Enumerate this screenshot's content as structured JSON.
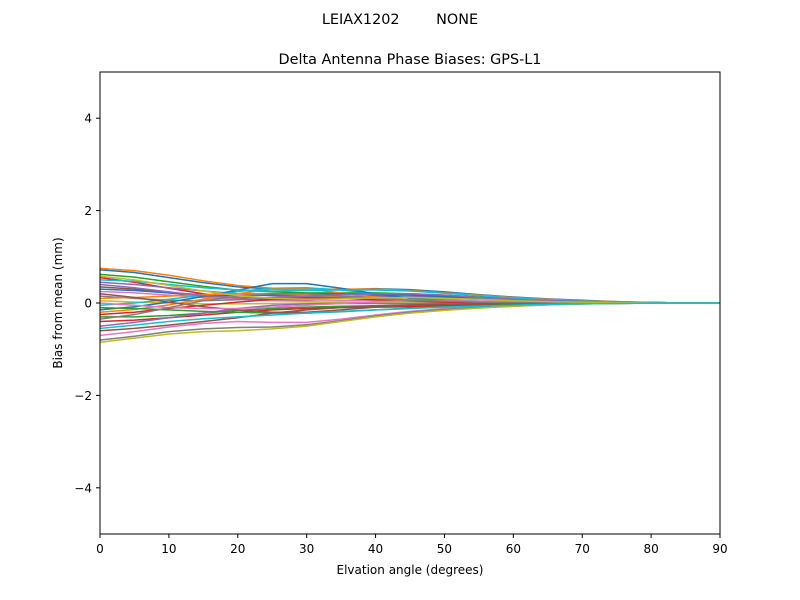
{
  "suptitle": "LEIAX1202        NONE",
  "chart_data": {
    "type": "line",
    "title": "Delta Antenna Phase Biases: GPS-L1",
    "xlabel": "Elvation angle (degrees)",
    "ylabel": "Bias from mean (mm)",
    "xlim": [
      0,
      90
    ],
    "ylim": [
      -5,
      5
    ],
    "xticks": [
      0,
      10,
      20,
      30,
      40,
      50,
      60,
      70,
      80,
      90
    ],
    "yticks": [
      -4,
      -2,
      0,
      2,
      4
    ],
    "ytick_labels": [
      "−4",
      "−2",
      "0",
      "2",
      "4"
    ],
    "grid": false,
    "legend": "none",
    "colors": [
      "#1f77b4",
      "#ff7f0e",
      "#2ca02c",
      "#d62728",
      "#9467bd",
      "#8c564b",
      "#e377c2",
      "#7f7f7f",
      "#bcbd22",
      "#17becf"
    ],
    "x": [
      0,
      5,
      10,
      15,
      20,
      25,
      30,
      35,
      40,
      45,
      50,
      55,
      60,
      65,
      70,
      75,
      80,
      85,
      90
    ],
    "series": [
      {
        "values": [
          0.72,
          0.66,
          0.55,
          0.44,
          0.35,
          0.3,
          0.28,
          0.29,
          0.31,
          0.29,
          0.24,
          0.18,
          0.13,
          0.09,
          0.06,
          0.03,
          0.01,
          0.0,
          0.0
        ]
      },
      {
        "values": [
          0.75,
          0.7,
          0.6,
          0.48,
          0.38,
          0.32,
          0.3,
          0.3,
          0.3,
          0.27,
          0.22,
          0.17,
          0.12,
          0.08,
          0.05,
          0.03,
          0.01,
          0.0,
          0.0
        ]
      },
      {
        "values": [
          0.62,
          0.56,
          0.46,
          0.36,
          0.28,
          0.24,
          0.22,
          0.22,
          0.22,
          0.2,
          0.17,
          0.13,
          0.09,
          0.06,
          0.04,
          0.02,
          0.01,
          0.0,
          0.0
        ]
      },
      {
        "values": [
          0.55,
          0.45,
          0.32,
          0.2,
          0.1,
          0.06,
          0.07,
          0.12,
          0.17,
          0.18,
          0.15,
          0.11,
          0.08,
          0.05,
          0.03,
          0.02,
          0.01,
          0.0,
          0.0
        ]
      },
      {
        "values": [
          0.45,
          0.4,
          0.33,
          0.26,
          0.2,
          0.16,
          0.15,
          0.15,
          0.15,
          0.14,
          0.12,
          0.09,
          0.07,
          0.05,
          0.03,
          0.02,
          0.01,
          0.0,
          0.0
        ]
      },
      {
        "values": [
          0.35,
          0.3,
          0.22,
          0.14,
          0.08,
          0.06,
          0.07,
          0.1,
          0.12,
          0.12,
          0.1,
          0.08,
          0.06,
          0.04,
          0.02,
          0.01,
          0.0,
          0.0,
          0.0
        ]
      },
      {
        "values": [
          0.25,
          0.22,
          0.17,
          0.12,
          0.08,
          0.05,
          0.04,
          0.05,
          0.06,
          0.06,
          0.05,
          0.04,
          0.03,
          0.02,
          0.01,
          0.01,
          0.0,
          0.0,
          0.0
        ]
      },
      {
        "values": [
          0.15,
          0.1,
          0.06,
          0.05,
          0.07,
          0.11,
          0.13,
          0.12,
          0.09,
          0.06,
          0.04,
          0.03,
          0.02,
          0.01,
          0.01,
          0.0,
          0.0,
          0.0,
          0.0
        ]
      },
      {
        "values": [
          0.05,
          0.02,
          0.0,
          -0.02,
          -0.02,
          -0.01,
          0.0,
          0.01,
          0.02,
          0.02,
          0.02,
          0.01,
          0.01,
          0.0,
          0.0,
          0.0,
          0.0,
          0.0,
          0.0
        ]
      },
      {
        "values": [
          -0.05,
          0.0,
          0.08,
          0.17,
          0.25,
          0.32,
          0.33,
          0.28,
          0.2,
          0.12,
          0.07,
          0.04,
          0.02,
          0.01,
          0.01,
          0.0,
          0.0,
          0.0,
          0.0
        ]
      },
      {
        "values": [
          -0.15,
          -0.08,
          0.02,
          0.14,
          0.28,
          0.42,
          0.42,
          0.32,
          0.2,
          0.1,
          0.05,
          0.03,
          0.02,
          0.01,
          0.0,
          0.0,
          0.0,
          0.0,
          0.0
        ]
      },
      {
        "values": [
          -0.2,
          -0.14,
          -0.04,
          0.08,
          0.2,
          0.3,
          0.3,
          0.22,
          0.13,
          0.06,
          0.03,
          0.02,
          0.01,
          0.0,
          0.0,
          0.0,
          0.0,
          0.0,
          0.0
        ]
      },
      {
        "values": [
          -0.3,
          -0.3,
          -0.27,
          -0.22,
          -0.16,
          -0.12,
          -0.09,
          -0.07,
          -0.06,
          -0.05,
          -0.04,
          -0.03,
          -0.02,
          -0.01,
          -0.01,
          0.0,
          0.0,
          0.0,
          0.0
        ]
      },
      {
        "values": [
          -0.4,
          -0.37,
          -0.32,
          -0.26,
          -0.2,
          -0.15,
          -0.12,
          -0.1,
          -0.09,
          -0.08,
          -0.06,
          -0.05,
          -0.03,
          -0.02,
          -0.01,
          0.0,
          0.0,
          0.0,
          0.0
        ]
      },
      {
        "values": [
          -0.5,
          -0.42,
          -0.32,
          -0.22,
          -0.12,
          -0.05,
          -0.02,
          -0.01,
          -0.01,
          -0.01,
          -0.01,
          0.0,
          0.0,
          0.0,
          0.0,
          0.0,
          0.0,
          0.0,
          0.0
        ]
      },
      {
        "values": [
          -0.6,
          -0.55,
          -0.48,
          -0.4,
          -0.32,
          -0.22,
          -0.15,
          -0.1,
          -0.06,
          -0.04,
          -0.03,
          -0.02,
          -0.01,
          -0.01,
          0.0,
          0.0,
          0.0,
          0.0,
          0.0
        ]
      },
      {
        "values": [
          -0.7,
          -0.62,
          -0.52,
          -0.44,
          -0.4,
          -0.42,
          -0.42,
          -0.35,
          -0.26,
          -0.18,
          -0.12,
          -0.08,
          -0.05,
          -0.03,
          -0.02,
          -0.01,
          0.0,
          0.0,
          0.0
        ]
      },
      {
        "values": [
          -0.8,
          -0.72,
          -0.62,
          -0.56,
          -0.53,
          -0.52,
          -0.47,
          -0.38,
          -0.28,
          -0.2,
          -0.14,
          -0.1,
          -0.07,
          -0.04,
          -0.02,
          -0.01,
          0.0,
          0.0,
          0.0
        ]
      },
      {
        "values": [
          -0.85,
          -0.76,
          -0.67,
          -0.62,
          -0.6,
          -0.56,
          -0.5,
          -0.4,
          -0.3,
          -0.22,
          -0.16,
          -0.11,
          -0.07,
          -0.04,
          -0.02,
          -0.01,
          0.0,
          0.0,
          0.0
        ]
      },
      {
        "values": [
          0.5,
          0.47,
          0.4,
          0.33,
          0.28,
          0.26,
          0.27,
          0.28,
          0.28,
          0.26,
          0.21,
          0.16,
          0.11,
          0.07,
          0.04,
          0.02,
          0.01,
          0.0,
          0.0
        ]
      },
      {
        "values": [
          0.3,
          0.27,
          0.22,
          0.18,
          0.16,
          0.17,
          0.19,
          0.2,
          0.19,
          0.17,
          0.14,
          0.1,
          0.07,
          0.05,
          0.03,
          0.01,
          0.0,
          0.0,
          0.0
        ]
      },
      {
        "values": [
          0.1,
          0.12,
          0.15,
          0.18,
          0.2,
          0.2,
          0.18,
          0.14,
          0.1,
          0.07,
          0.05,
          0.03,
          0.02,
          0.01,
          0.01,
          0.0,
          0.0,
          0.0,
          0.0
        ]
      },
      {
        "values": [
          -0.1,
          -0.12,
          -0.15,
          -0.18,
          -0.2,
          -0.22,
          -0.22,
          -0.19,
          -0.15,
          -0.11,
          -0.08,
          -0.06,
          -0.04,
          -0.02,
          -0.01,
          0.0,
          0.0,
          0.0,
          0.0
        ]
      },
      {
        "values": [
          -0.25,
          -0.2,
          -0.12,
          -0.05,
          0.02,
          0.08,
          0.11,
          0.1,
          0.07,
          0.04,
          0.02,
          0.01,
          0.01,
          0.0,
          0.0,
          0.0,
          0.0,
          0.0,
          0.0
        ]
      },
      {
        "values": [
          0.4,
          0.33,
          0.24,
          0.16,
          0.12,
          0.12,
          0.15,
          0.18,
          0.2,
          0.2,
          0.17,
          0.12,
          0.08,
          0.05,
          0.03,
          0.01,
          0.0,
          0.0,
          0.0
        ]
      },
      {
        "values": [
          0.2,
          0.12,
          0.02,
          -0.08,
          -0.15,
          -0.2,
          -0.2,
          -0.15,
          -0.09,
          -0.05,
          -0.03,
          -0.02,
          -0.01,
          0.0,
          0.0,
          0.0,
          0.0,
          0.0,
          0.0
        ]
      },
      {
        "values": [
          0.0,
          -0.05,
          -0.1,
          -0.12,
          -0.12,
          -0.09,
          -0.05,
          -0.01,
          0.03,
          0.05,
          0.05,
          0.04,
          0.03,
          0.02,
          0.01,
          0.0,
          0.0,
          0.0,
          0.0
        ]
      },
      {
        "values": [
          -0.35,
          -0.25,
          -0.1,
          0.05,
          0.15,
          0.2,
          0.2,
          0.15,
          0.1,
          0.06,
          0.04,
          0.02,
          0.01,
          0.01,
          0.0,
          0.0,
          0.0,
          0.0,
          0.0
        ]
      },
      {
        "values": [
          0.58,
          0.5,
          0.38,
          0.26,
          0.16,
          0.1,
          0.08,
          0.09,
          0.11,
          0.12,
          0.1,
          0.08,
          0.05,
          0.03,
          0.02,
          0.01,
          0.0,
          0.0,
          0.0
        ]
      },
      {
        "values": [
          -0.55,
          -0.48,
          -0.4,
          -0.34,
          -0.3,
          -0.26,
          -0.22,
          -0.18,
          -0.15,
          -0.12,
          -0.09,
          -0.07,
          -0.05,
          -0.03,
          -0.02,
          -0.01,
          0.0,
          0.0,
          0.0
        ]
      }
    ]
  }
}
